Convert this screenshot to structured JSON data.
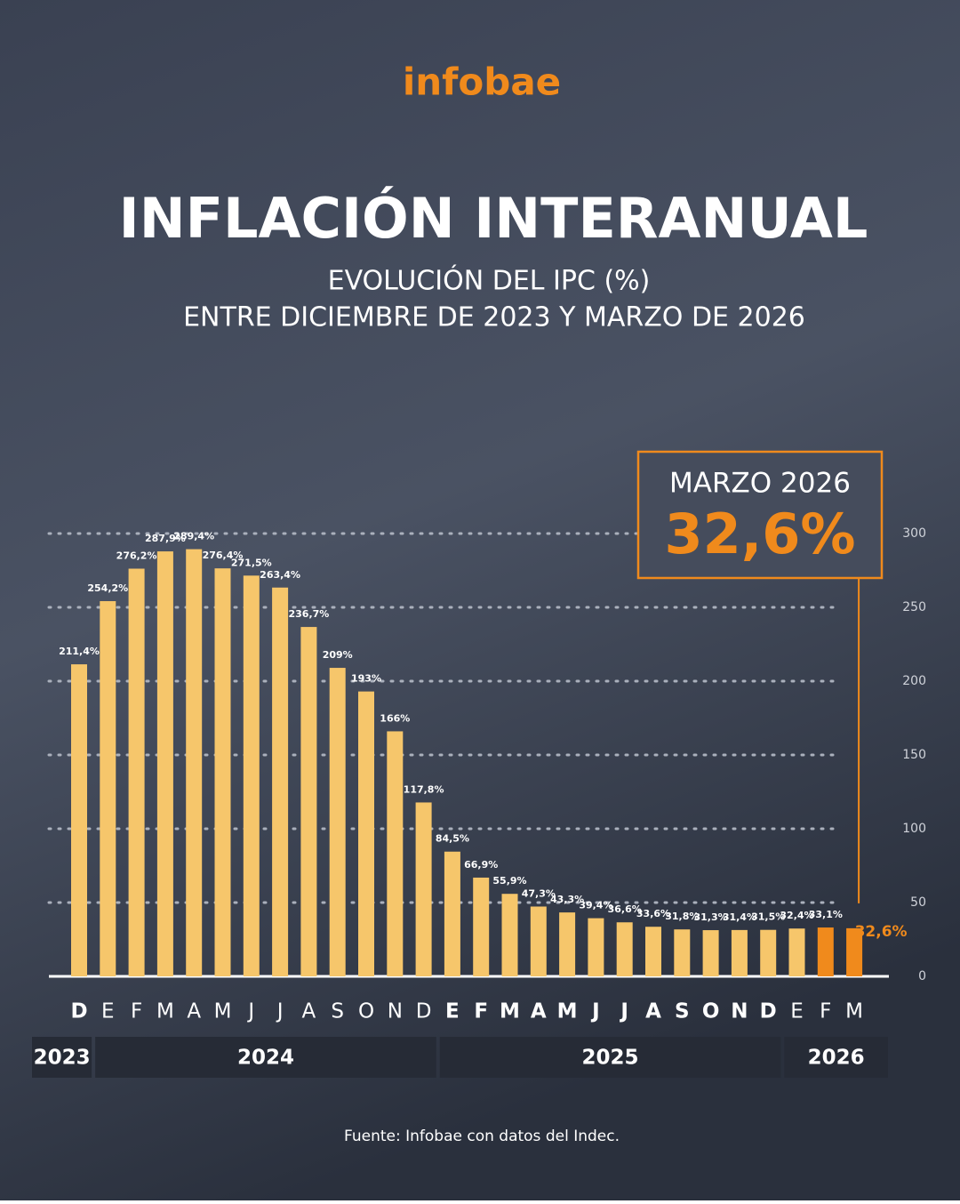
{
  "brand": "infobae",
  "chart_data": {
    "type": "bar",
    "title": "INFLACIÓN INTERANUAL",
    "subtitle": [
      "EVOLUCIÓN DEL IPC (%)",
      "ENTRE DICIEMBRE DE 2023 Y MARZO DE 2026"
    ],
    "categories": [
      "D",
      "E",
      "F",
      "M",
      "A",
      "M",
      "J",
      "J",
      "A",
      "S",
      "O",
      "N",
      "D",
      "E",
      "F",
      "M",
      "A",
      "M",
      "J",
      "J",
      "A",
      "S",
      "O",
      "N",
      "D",
      "E",
      "F",
      "M"
    ],
    "years": [
      "2023",
      "2024",
      "2025",
      "2026"
    ],
    "values": [
      211.4,
      254.2,
      276.2,
      287.9,
      289.4,
      276.4,
      271.5,
      263.4,
      236.7,
      209,
      193,
      166,
      117.8,
      84.5,
      66.9,
      55.9,
      47.3,
      43.3,
      39.4,
      36.6,
      33.6,
      31.8,
      31.3,
      31.4,
      31.5,
      32.4,
      33.1,
      32.6
    ],
    "value_labels": [
      "211,4%",
      "254,2%",
      "276,2%",
      "287,9%",
      "289,4%",
      "276,4%",
      "271,5%",
      "263,4%",
      "236,7%",
      "209%",
      "193%",
      "166%",
      "117,8%",
      "84,5%",
      "66,9%",
      "55,9%",
      "47,3%",
      "43,3%",
      "39,4%",
      "36,6%",
      "33,6%",
      "31,8%",
      "31,3%",
      "31,4%",
      "31,5%",
      "32,4%",
      "33,1%",
      "32,6%"
    ],
    "colors": [
      "#f6c66b",
      "#f6c66b",
      "#f6c66b",
      "#f6c66b",
      "#f6c66b",
      "#f6c66b",
      "#f6c66b",
      "#f6c66b",
      "#f6c66b",
      "#f6c66b",
      "#f6c66b",
      "#f6c66b",
      "#f6c66b",
      "#f6c66b",
      "#f6c66b",
      "#f6c66b",
      "#f6c66b",
      "#f6c66b",
      "#f6c66b",
      "#f6c66b",
      "#f6c66b",
      "#f6c66b",
      "#f6c66b",
      "#f6c66b",
      "#f6c66b",
      "#f6c66b",
      "#f08a1c",
      "#f08a1c"
    ],
    "ylim": [
      0,
      300
    ],
    "yticks": [
      0,
      50,
      100,
      150,
      200,
      250,
      300
    ],
    "grid": true,
    "annotation": "MARZO 2026",
    "source": "Fuente: Infobae con datos del Indec."
  }
}
